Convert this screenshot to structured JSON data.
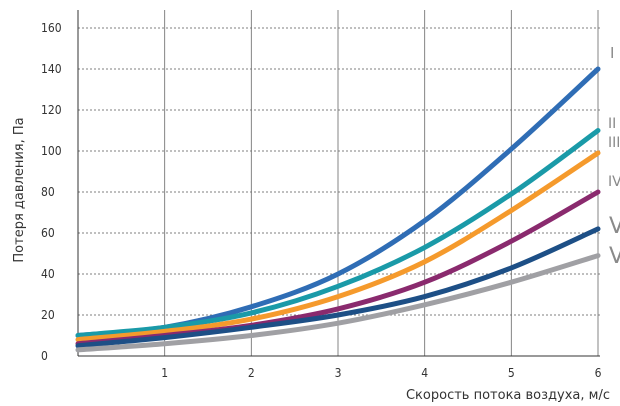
{
  "chart_data": {
    "type": "line",
    "title": "",
    "xlabel": "Скорость потока воздуха, м/с",
    "ylabel": "Потеря давления, Па",
    "xlim": [
      0,
      6
    ],
    "ylim": [
      0,
      160
    ],
    "x_ticks": [
      1,
      2,
      3,
      4,
      5,
      6
    ],
    "y_ticks": [
      0,
      20,
      40,
      60,
      80,
      100,
      120,
      140,
      160
    ],
    "grid": true,
    "legend": "inline labels at right end of lines",
    "series": [
      {
        "name": "I",
        "color": "#2f6db5",
        "x": [
          0,
          1,
          2,
          3,
          4,
          5,
          6
        ],
        "y": [
          10,
          14,
          24,
          40,
          66,
          101,
          140
        ]
      },
      {
        "name": "II",
        "color": "#1a9aa8",
        "x": [
          0,
          1,
          2,
          3,
          4,
          5,
          6
        ],
        "y": [
          10,
          14,
          21,
          34,
          53,
          79,
          110
        ]
      },
      {
        "name": "III",
        "color": "#f59a2c",
        "x": [
          0,
          1,
          2,
          3,
          4,
          5,
          6
        ],
        "y": [
          8,
          12,
          18,
          29,
          46,
          71,
          99
        ]
      },
      {
        "name": "IV",
        "color": "#8a2a6e",
        "x": [
          0,
          1,
          2,
          3,
          4,
          5,
          6
        ],
        "y": [
          6,
          10,
          15,
          23,
          36,
          56,
          80
        ]
      },
      {
        "name": "V",
        "color": "#1d4f86",
        "x": [
          0,
          1,
          2,
          3,
          4,
          5,
          6
        ],
        "y": [
          5,
          9,
          14,
          20,
          29,
          43,
          62
        ]
      },
      {
        "name": "VI",
        "color": "#a0a0a4",
        "x": [
          0,
          1,
          2,
          3,
          4,
          5,
          6
        ],
        "y": [
          3,
          6,
          10,
          16,
          25,
          36,
          49
        ]
      }
    ]
  }
}
